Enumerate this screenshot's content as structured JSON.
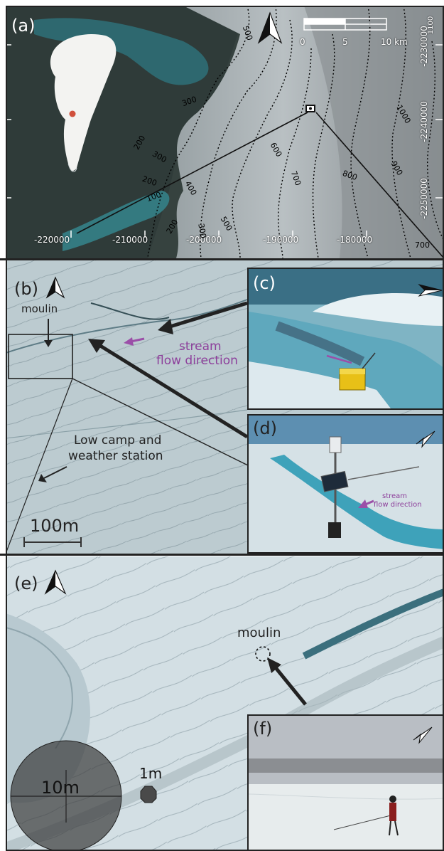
{
  "panels": {
    "a": {
      "label": "(a)",
      "scale": {
        "tick0": "0",
        "tick1": "5",
        "tick2": "10 km"
      },
      "x_ticks": [
        "-220000",
        "-210000",
        "-200000",
        "-190000",
        "-180000"
      ],
      "y_ticks": [
        "-2230000",
        "-2240000",
        "-2250000"
      ],
      "top_corner_label": "1100",
      "contours": [
        "500",
        "300",
        "200",
        "300",
        "200",
        "100",
        "200",
        "400",
        "500",
        "300",
        "600",
        "700",
        "800",
        "900",
        "1000",
        "700"
      ]
    },
    "b": {
      "label": "(b)",
      "moulin": "moulin",
      "stream_line1": "stream",
      "stream_line2": "flow direction",
      "camp_line1": "Low camp and",
      "camp_line2": "weather station",
      "scale": "100m"
    },
    "c": {
      "label": "(c)"
    },
    "d": {
      "label": "(d)",
      "stream_line1": "stream",
      "stream_line2": "flow direction"
    },
    "e": {
      "label": "(e)",
      "moulin": "moulin",
      "scale_big": "10m",
      "scale_small": "1m"
    },
    "f": {
      "label": "(f)"
    }
  },
  "colors": {
    "stream_arrow": "#9b4fa8",
    "location_dot": "#d0503c",
    "frame": "#222222"
  },
  "icons": [
    "north-arrow-icon",
    "camera-direction-icon",
    "scale-bar"
  ]
}
